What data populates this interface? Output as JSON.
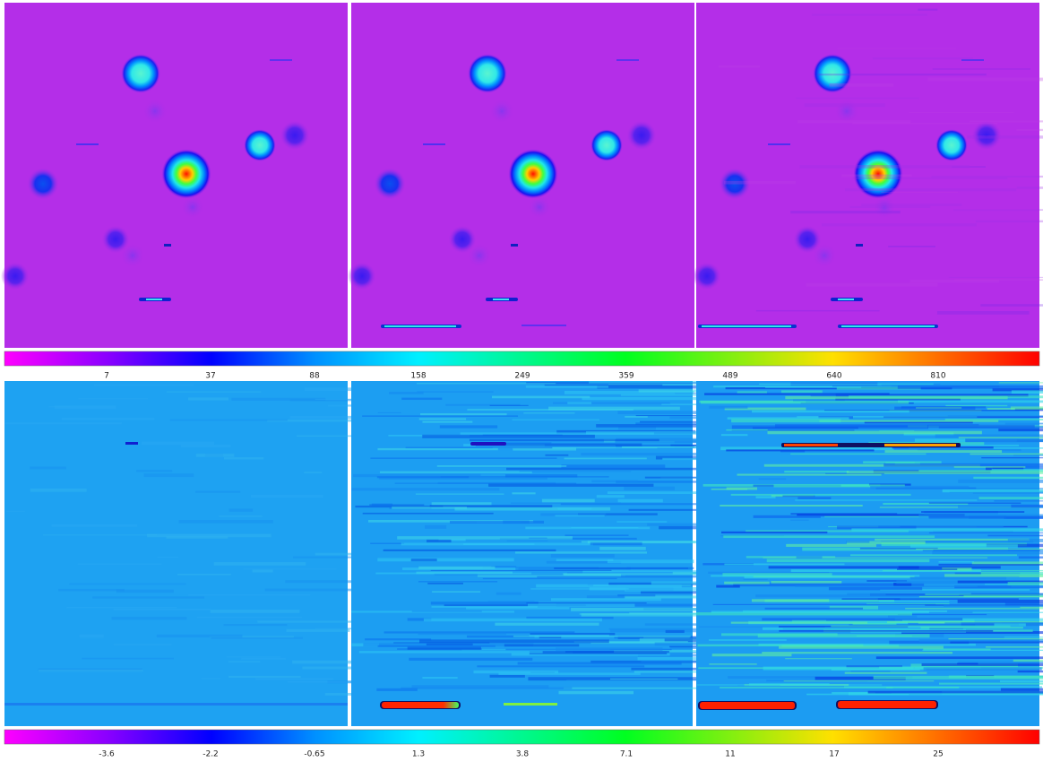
{
  "colorbars": [
    {
      "tick_labels": [
        7,
        37,
        88,
        158,
        249,
        359,
        489,
        640,
        810
      ]
    },
    {
      "tick_labels": [
        -3.6,
        -2.2,
        -0.65,
        1.3,
        3.8,
        7.1,
        11,
        17,
        25
      ]
    }
  ]
}
